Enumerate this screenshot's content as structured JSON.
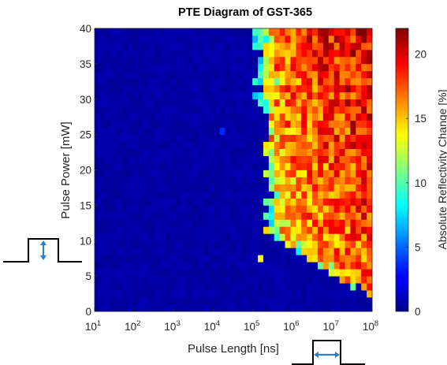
{
  "chart_data": {
    "type": "heatmap",
    "title": "PTE Diagram of GST-365",
    "xlabel": "Pulse Length [ns]",
    "ylabel": "Pulse Power [mW]",
    "x_scale": "log",
    "xlim": [
      10,
      100000000
    ],
    "ylim": [
      0,
      40
    ],
    "x_tick_labels": [
      {
        "base": "10",
        "exp": "1",
        "value": 10
      },
      {
        "base": "10",
        "exp": "2",
        "value": 100
      },
      {
        "base": "10",
        "exp": "3",
        "value": 1000
      },
      {
        "base": "10",
        "exp": "4",
        "value": 10000
      },
      {
        "base": "10",
        "exp": "5",
        "value": 100000
      },
      {
        "base": "10",
        "exp": "6",
        "value": 1000000
      },
      {
        "base": "10",
        "exp": "7",
        "value": 10000000
      },
      {
        "base": "10",
        "exp": "8",
        "value": 100000000
      }
    ],
    "y_ticks": [
      0,
      5,
      10,
      15,
      20,
      25,
      30,
      35,
      40
    ],
    "colorbar": {
      "label": "Absolute Reflectivity Change [%]",
      "ticks": [
        0,
        5,
        10,
        15,
        20
      ],
      "range": [
        0,
        22
      ],
      "colormap": "jet"
    },
    "grid": {
      "x_bins": 51,
      "y_bins": 40,
      "background_level": 0.5,
      "transition": {
        "log10_x_at_40mW": 5.2,
        "log10_x_at_11mW": 5.35,
        "log10_x_at_2mW": 7.95,
        "high_state_mean": 15.5,
        "high_state_gradient": "increases toward long pulse and high power, up to about 22"
      },
      "isolated_cells": [
        {
          "log10_x": 4.25,
          "power": 25.5,
          "value": 3.5
        },
        {
          "log10_x": 4.85,
          "power": 15,
          "value": 14
        },
        {
          "log10_x": 5.2,
          "power": 7.5,
          "value": 14
        }
      ]
    },
    "pulse_icons": [
      {
        "position": "left",
        "meaning": "pulse power (height)",
        "arrow": "vertical"
      },
      {
        "position": "bottom",
        "meaning": "pulse length (width)",
        "arrow": "horizontal"
      }
    ]
  },
  "colors": {
    "arrow": "#2a7fd1",
    "icon_line": "#000000",
    "axis": "#262626"
  }
}
